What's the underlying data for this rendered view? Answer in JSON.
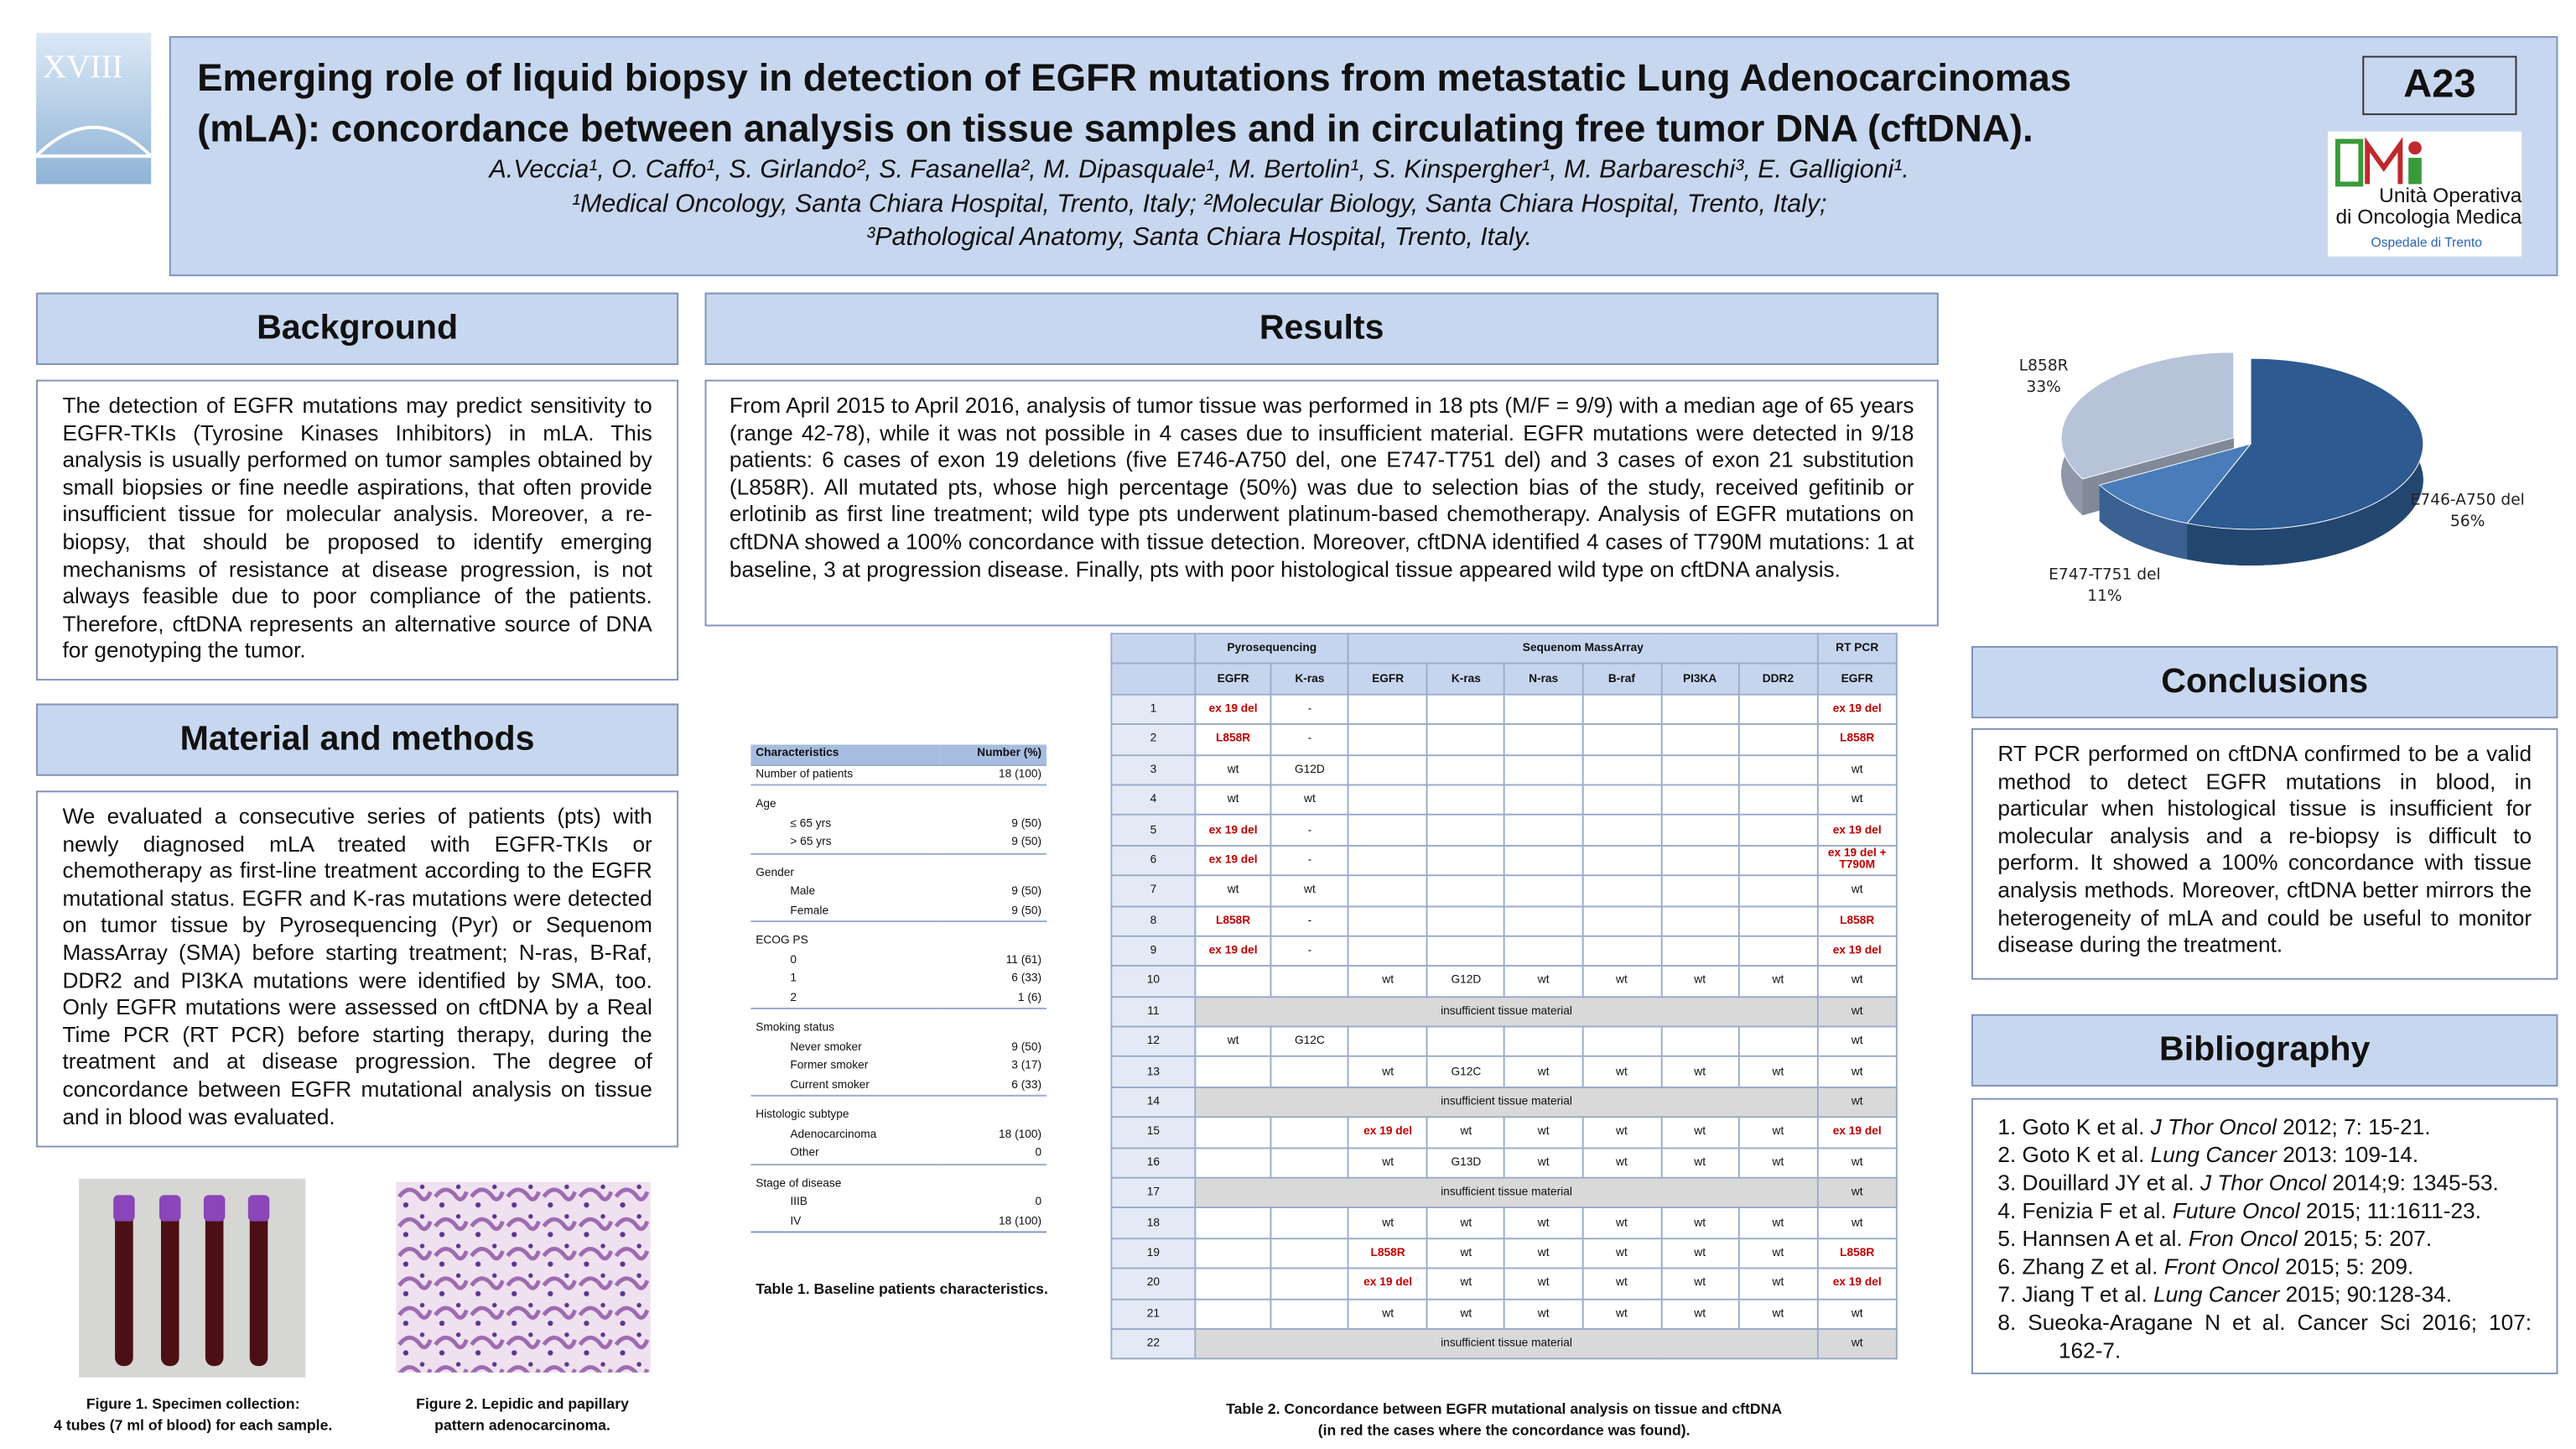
{
  "header": {
    "conference": "XVIII",
    "code": "A23",
    "title_lines": [
      "Emerging role of liquid biopsy in detection of EGFR mutations from metastatic Lung Adenocarcinomas",
      "(mLA): concordance between analysis on tissue samples and in circulating free tumor DNA (cftDNA)."
    ],
    "authors": "A.Veccia¹, O. Caffo¹, S. Girlando², S. Fasanella², M. Dipasquale¹, M. Bertolin¹, S. Kinspergher¹, M. Barbareschi³, E. Galligioni¹.",
    "affiliations": [
      "¹Medical Oncology, Santa Chiara Hospital, Trento, Italy; ²Molecular Biology, Santa Chiara Hospital, Trento, Italy;",
      "³Pathological Anatomy, Santa Chiara Hospital, Trento, Italy."
    ],
    "logo_lines": [
      "Unità Operativa",
      "di Oncologia Medica"
    ],
    "logo_sub": "Ospedale di Trento"
  },
  "background": {
    "heading": "Background",
    "text": "The detection of EGFR mutations may predict sensitivity to EGFR-TKIs (Tyrosine Kinases Inhibitors) in mLA. This analysis is usually performed on tumor samples obtained by small biopsies or fine needle aspirations, that often provide insufficient tissue for molecular analysis. Moreover, a re-biopsy, that should be proposed to identify emerging mechanisms of resistance at disease progression, is not always feasible due to poor compliance of the patients. Therefore, cftDNA represents an alternative source of DNA for genotyping the tumor."
  },
  "methods": {
    "heading": "Material and methods",
    "text": "We evaluated a consecutive series of patients (pts) with newly diagnosed mLA treated with EGFR-TKIs or chemotherapy as first-line treatment according to the EGFR mutational status. EGFR and K-ras mutations were detected on tumor tissue by Pyrosequencing (Pyr) or Sequenom MassArray (SMA) before starting treatment; N-ras, B-Raf, DDR2 and PI3KA mutations were identified by SMA, too. Only EGFR mutations were assessed on cftDNA by a Real Time PCR (RT PCR) before starting therapy, during the treatment and at disease progression. The degree of concordance between EGFR mutational analysis on tissue and in blood was evaluated."
  },
  "figures": [
    {
      "caption": [
        "Figure 1. Specimen collection:",
        "4 tubes (7 ml of blood) for each sample."
      ]
    },
    {
      "caption": [
        "Figure 2. Lepidic and papillary",
        "pattern adenocarcinoma."
      ]
    }
  ],
  "results": {
    "heading": "Results",
    "text": "From April 2015 to April 2016, analysis of tumor tissue was performed in 18 pts (M/F = 9/9) with a median age of 65 years (range 42-78), while it was not possible in 4 cases due to insufficient material. EGFR mutations were detected in 9/18 patients: 6 cases of exon 19 deletions (five E746-A750 del, one E747-T751 del) and 3 cases of exon 21 substitution (L858R). All mutated pts, whose high percentage (50%) was due to selection bias of the study, received gefitinib or erlotinib as first line treatment; wild type pts underwent platinum-based chemotherapy. Analysis of EGFR mutations on cftDNA showed a 100% concordance with tissue detection. Moreover, cftDNA identified 4 cases of T790M mutations: 1 at baseline, 3 at progression disease. Finally, pts with poor histological tissue appeared wild type on cftDNA analysis."
  },
  "table1": {
    "header": [
      "Characteristics",
      "Number (%)"
    ],
    "rows": [
      [
        "Number of patients",
        "18 (100)"
      ],
      [
        "Age",
        null
      ],
      [
        "≤ 65 yrs",
        "9 (50)"
      ],
      [
        "> 65 yrs",
        "9 (50)"
      ],
      [
        "Gender",
        null
      ],
      [
        "Male",
        "9 (50)"
      ],
      [
        "Female",
        "9 (50)"
      ],
      [
        "ECOG PS",
        null
      ],
      [
        "0",
        "11 (61)"
      ],
      [
        "1",
        "6 (33)"
      ],
      [
        "2",
        "1 (6)"
      ],
      [
        "Smoking status",
        null
      ],
      [
        "Never smoker",
        "9 (50)"
      ],
      [
        "Former smoker",
        "3 (17)"
      ],
      [
        "Current smoker",
        "6 (33)"
      ],
      [
        "Histologic subtype",
        null
      ],
      [
        "Adenocarcinoma",
        "18 (100)"
      ],
      [
        "Other",
        "0"
      ],
      [
        "Stage of disease",
        null
      ],
      [
        "IIIB",
        "0"
      ],
      [
        "IV",
        "18 (100)"
      ]
    ],
    "caption": "Table 1. Baseline patients characteristics."
  },
  "table2": {
    "groups": [
      "Pyrosequencing",
      "Sequenom MassArray",
      "RT PCR"
    ],
    "columns": [
      "EGFR",
      "K-ras",
      "EGFR",
      "K-ras",
      "N-ras",
      "B-raf",
      "PI3KA",
      "DDR2",
      "EGFR"
    ],
    "rows": [
      {
        "id": "1",
        "concordant": true,
        "cells": [
          "ex 19 del",
          "-",
          null,
          null,
          null,
          null,
          null,
          null,
          "ex 19 del"
        ]
      },
      {
        "id": "2",
        "concordant": true,
        "cells": [
          "L858R",
          "-",
          null,
          null,
          null,
          null,
          null,
          null,
          "L858R"
        ]
      },
      {
        "id": "3",
        "cells": [
          "wt",
          "G12D",
          null,
          null,
          null,
          null,
          null,
          null,
          "wt"
        ]
      },
      {
        "id": "4",
        "cells": [
          "wt",
          "wt",
          null,
          null,
          null,
          null,
          null,
          null,
          "wt"
        ]
      },
      {
        "id": "5",
        "concordant": true,
        "cells": [
          "ex 19 del",
          "-",
          null,
          null,
          null,
          null,
          null,
          null,
          "ex 19 del"
        ]
      },
      {
        "id": "6",
        "concordant": true,
        "cells": [
          "ex 19 del",
          "-",
          null,
          null,
          null,
          null,
          null,
          null,
          "ex 19 del + T790M"
        ]
      },
      {
        "id": "7",
        "cells": [
          "wt",
          "wt",
          null,
          null,
          null,
          null,
          null,
          null,
          "wt"
        ]
      },
      {
        "id": "8",
        "concordant": true,
        "cells": [
          "L858R",
          "-",
          null,
          null,
          null,
          null,
          null,
          null,
          "L858R"
        ]
      },
      {
        "id": "9",
        "concordant": true,
        "cells": [
          "ex 19 del",
          "-",
          null,
          null,
          null,
          null,
          null,
          null,
          "ex 19 del"
        ]
      },
      {
        "id": "10",
        "cells": [
          null,
          null,
          "wt",
          "G12D",
          "wt",
          "wt",
          "wt",
          "wt",
          "wt"
        ]
      },
      {
        "id": "11",
        "note": "insufficient tissue material",
        "rt": "wt"
      },
      {
        "id": "12",
        "cells": [
          "wt",
          "G12C",
          null,
          null,
          null,
          null,
          null,
          null,
          "wt"
        ]
      },
      {
        "id": "13",
        "cells": [
          null,
          null,
          "wt",
          "G12C",
          "wt",
          "wt",
          "wt",
          "wt",
          "wt"
        ]
      },
      {
        "id": "14",
        "note": "insufficient tissue material",
        "rt": "wt"
      },
      {
        "id": "15",
        "concordant": true,
        "cells": [
          null,
          null,
          "ex 19 del",
          "wt",
          "wt",
          "wt",
          "wt",
          "wt",
          "ex 19 del"
        ]
      },
      {
        "id": "16",
        "cells": [
          null,
          null,
          "wt",
          "G13D",
          "wt",
          "wt",
          "wt",
          "wt",
          "wt"
        ]
      },
      {
        "id": "17",
        "note": "insufficient tissue material",
        "rt": "wt"
      },
      {
        "id": "18",
        "cells": [
          null,
          null,
          "wt",
          "wt",
          "wt",
          "wt",
          "wt",
          "wt",
          "wt"
        ]
      },
      {
        "id": "19",
        "concordant": true,
        "cells": [
          null,
          null,
          "L858R",
          "wt",
          "wt",
          "wt",
          "wt",
          "wt",
          "L858R"
        ]
      },
      {
        "id": "20",
        "concordant": true,
        "cells": [
          null,
          null,
          "ex 19 del",
          "wt",
          "wt",
          "wt",
          "wt",
          "wt",
          "ex 19 del"
        ]
      },
      {
        "id": "21",
        "cells": [
          null,
          null,
          "wt",
          "wt",
          "wt",
          "wt",
          "wt",
          "wt",
          "wt"
        ]
      },
      {
        "id": "22",
        "note": "insufficient tissue material",
        "rt": "wt"
      }
    ],
    "caption": [
      "Table 2. Concordance between EGFR mutational analysis on tissue and cftDNA",
      "(in red the cases where the concordance was found)."
    ]
  },
  "chart_data": {
    "type": "pie",
    "categories": [
      "L858R",
      "E746-A750 del",
      "E747-T751 del"
    ],
    "values": [
      33,
      56,
      11
    ],
    "value_labels": [
      "33%",
      "56%",
      "11%"
    ],
    "colors": [
      "#b7c3d8",
      "#2d5a90",
      "#4a7cba"
    ]
  },
  "conclusions": {
    "heading": "Conclusions",
    "text": "RT PCR performed on cftDNA confirmed to be a valid method to detect EGFR mutations in blood, in particular when histological tissue is insufficient for molecular analysis and a re-biopsy is difficult to perform. It showed a 100% concordance with tissue analysis methods. Moreover, cftDNA better mirrors the heterogeneity of mLA and could be useful to monitor disease during the treatment."
  },
  "bibliography": {
    "heading": "Bibliography",
    "items": [
      [
        "1. Goto K et al. ",
        "J  Thor Oncol",
        "  2012; 7: 15-21."
      ],
      [
        "2. Goto K et al. ",
        "Lung Cancer",
        " 2013: 109-14."
      ],
      [
        "3. Douillard JY et al. ",
        "J Thor Oncol",
        " 2014;9: 1345-53."
      ],
      [
        "4. Fenizia F et al. ",
        "Future Oncol",
        " 2015; 11:1611-23."
      ],
      [
        "5. Hannsen A et al. ",
        "Fron Oncol",
        " 2015; 5: 207."
      ],
      [
        "6. Zhang Z et al. ",
        "Front Oncol",
        " 2015; 5: 209."
      ],
      [
        "7. Jiang T et al. ",
        "Lung Cancer",
        " 2015; 90:128-34."
      ],
      [
        "8.  Sueoka-Aragane N et al. Cancer Sci 2016; 107: 162-7."
      ]
    ]
  }
}
